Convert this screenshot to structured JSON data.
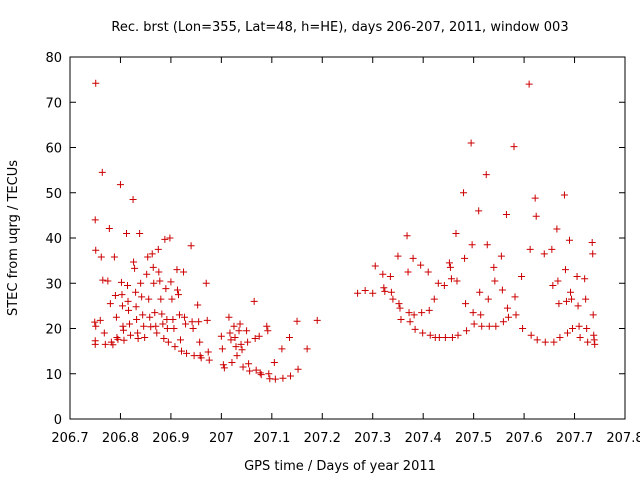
{
  "chart_data": {
    "type": "scatter",
    "title": "Rec. brst (Lon=355, Lat=48, h=HE), days 206-207, 2011, window 003",
    "xlabel": "GPS time / Days of year 2011",
    "ylabel": "STEC from uqrg / TECUs",
    "xlim": [
      206.7,
      207.8
    ],
    "ylim": [
      0,
      80
    ],
    "xticks": [
      206.7,
      206.8,
      206.9,
      207,
      207.1,
      207.2,
      207.3,
      207.4,
      207.5,
      207.6,
      207.7,
      207.8
    ],
    "xtick_labels": [
      "206.7",
      "206.8",
      "206.9",
      "207",
      "207.1",
      "207.2",
      "207.3",
      "207.4",
      "207.5",
      "207.6",
      "207.7",
      "207.8"
    ],
    "yticks": [
      0,
      10,
      20,
      30,
      40,
      50,
      60,
      70,
      80
    ],
    "ytick_labels": [
      "0",
      "10",
      "20",
      "30",
      "40",
      "50",
      "60",
      "70",
      "80"
    ],
    "marker": "+",
    "color": "#cc0000",
    "grid": false,
    "series": [
      {
        "points": [
          [
            206.751,
            74.2
          ],
          [
            206.75,
            44.0
          ],
          [
            206.751,
            37.3
          ],
          [
            206.749,
            21.4
          ],
          [
            206.751,
            20.5
          ],
          [
            206.75,
            17.3
          ],
          [
            206.75,
            16.5
          ],
          [
            206.76,
            21.8
          ],
          [
            206.762,
            35.8
          ],
          [
            206.764,
            54.5
          ],
          [
            206.765,
            30.7
          ],
          [
            206.768,
            19.0
          ],
          [
            206.77,
            16.5
          ],
          [
            206.775,
            30.5
          ],
          [
            206.778,
            42.1
          ],
          [
            206.78,
            25.5
          ],
          [
            206.782,
            17.0
          ],
          [
            206.785,
            16.4
          ],
          [
            206.788,
            35.8
          ],
          [
            206.79,
            27.3
          ],
          [
            206.792,
            22.5
          ],
          [
            206.793,
            18.0
          ],
          [
            206.795,
            17.6
          ],
          [
            206.8,
            51.8
          ],
          [
            206.802,
            30.2
          ],
          [
            206.803,
            27.5
          ],
          [
            206.804,
            25.0
          ],
          [
            206.805,
            20.5
          ],
          [
            206.806,
            19.6
          ],
          [
            206.807,
            17.4
          ],
          [
            206.812,
            41.0
          ],
          [
            206.814,
            29.5
          ],
          [
            206.815,
            26.0
          ],
          [
            206.816,
            24.0
          ],
          [
            206.818,
            21.0
          ],
          [
            206.82,
            18.5
          ],
          [
            206.825,
            48.5
          ],
          [
            206.826,
            34.7
          ],
          [
            206.828,
            33.3
          ],
          [
            206.83,
            28.0
          ],
          [
            206.831,
            24.8
          ],
          [
            206.832,
            22.0
          ],
          [
            206.834,
            19.0
          ],
          [
            206.835,
            17.8
          ],
          [
            206.838,
            41.0
          ],
          [
            206.84,
            30.0
          ],
          [
            206.842,
            27.0
          ],
          [
            206.844,
            23.0
          ],
          [
            206.846,
            20.5
          ],
          [
            206.848,
            18.0
          ],
          [
            206.852,
            32.0
          ],
          [
            206.854,
            35.8
          ],
          [
            206.856,
            26.5
          ],
          [
            206.858,
            22.5
          ],
          [
            206.86,
            20.4
          ],
          [
            206.863,
            36.5
          ],
          [
            206.865,
            33.5
          ],
          [
            206.866,
            30.0
          ],
          [
            206.868,
            23.5
          ],
          [
            206.87,
            20.5
          ],
          [
            206.872,
            19.0
          ],
          [
            206.875,
            37.5
          ],
          [
            206.876,
            32.5
          ],
          [
            206.878,
            30.5
          ],
          [
            206.88,
            26.5
          ],
          [
            206.882,
            23.2
          ],
          [
            206.884,
            21.0
          ],
          [
            206.886,
            17.8
          ],
          [
            206.888,
            39.7
          ],
          [
            206.89,
            28.8
          ],
          [
            206.892,
            22.0
          ],
          [
            206.893,
            20.0
          ],
          [
            206.895,
            17.0
          ],
          [
            206.898,
            40.0
          ],
          [
            206.9,
            30.3
          ],
          [
            206.902,
            26.5
          ],
          [
            206.904,
            22.0
          ],
          [
            206.906,
            20.0
          ],
          [
            206.908,
            16.0
          ],
          [
            206.912,
            33.0
          ],
          [
            206.913,
            28.5
          ],
          [
            206.915,
            27.5
          ],
          [
            206.917,
            23.0
          ],
          [
            206.919,
            17.5
          ],
          [
            206.921,
            15.0
          ],
          [
            206.925,
            32.5
          ],
          [
            206.927,
            22.5
          ],
          [
            206.929,
            21.0
          ],
          [
            206.931,
            14.5
          ],
          [
            206.94,
            38.3
          ],
          [
            206.942,
            21.5
          ],
          [
            206.944,
            20.0
          ],
          [
            206.946,
            14.0
          ],
          [
            206.953,
            25.2
          ],
          [
            206.955,
            21.5
          ],
          [
            206.957,
            17.0
          ],
          [
            206.958,
            14.0
          ],
          [
            206.96,
            13.5
          ],
          [
            206.97,
            30.0
          ],
          [
            206.972,
            21.8
          ],
          [
            206.974,
            14.8
          ],
          [
            206.976,
            13.0
          ],
          [
            207.0,
            18.3
          ],
          [
            207.002,
            15.5
          ],
          [
            207.004,
            12.0
          ],
          [
            207.006,
            11.3
          ],
          [
            207.015,
            22.5
          ],
          [
            207.017,
            19.0
          ],
          [
            207.019,
            17.5
          ],
          [
            207.021,
            12.5
          ],
          [
            207.025,
            20.5
          ],
          [
            207.027,
            18.0
          ],
          [
            207.029,
            16.0
          ],
          [
            207.031,
            14.0
          ],
          [
            207.035,
            19.5
          ],
          [
            207.037,
            21.0
          ],
          [
            207.039,
            16.5
          ],
          [
            207.041,
            15.3
          ],
          [
            207.043,
            11.5
          ],
          [
            207.05,
            19.5
          ],
          [
            207.052,
            17.0
          ],
          [
            207.054,
            12.2
          ],
          [
            207.056,
            10.6
          ],
          [
            207.065,
            26.0
          ],
          [
            207.067,
            17.8
          ],
          [
            207.069,
            10.8
          ],
          [
            207.075,
            18.3
          ],
          [
            207.077,
            10.2
          ],
          [
            207.079,
            9.8
          ],
          [
            207.09,
            20.5
          ],
          [
            207.092,
            19.5
          ],
          [
            207.094,
            10.0
          ],
          [
            207.096,
            8.9
          ],
          [
            207.105,
            12.5
          ],
          [
            207.107,
            8.8
          ],
          [
            207.12,
            15.5
          ],
          [
            207.122,
            9.0
          ],
          [
            207.135,
            18.0
          ],
          [
            207.137,
            9.5
          ],
          [
            207.15,
            21.6
          ],
          [
            207.152,
            11.0
          ],
          [
            207.17,
            15.5
          ],
          [
            207.19,
            21.8
          ],
          [
            207.27,
            27.8
          ],
          [
            207.285,
            28.4
          ],
          [
            207.3,
            27.8
          ],
          [
            207.305,
            33.8
          ],
          [
            207.32,
            32.0
          ],
          [
            207.322,
            29.0
          ],
          [
            207.324,
            28.2
          ],
          [
            207.335,
            31.5
          ],
          [
            207.337,
            28.0
          ],
          [
            207.34,
            26.5
          ],
          [
            207.35,
            36.0
          ],
          [
            207.352,
            25.5
          ],
          [
            207.354,
            24.5
          ],
          [
            207.356,
            22.0
          ],
          [
            207.368,
            40.5
          ],
          [
            207.37,
            32.5
          ],
          [
            207.372,
            23.5
          ],
          [
            207.374,
            21.5
          ],
          [
            207.38,
            35.5
          ],
          [
            207.382,
            23.0
          ],
          [
            207.384,
            19.8
          ],
          [
            207.395,
            34.0
          ],
          [
            207.397,
            23.5
          ],
          [
            207.399,
            19.0
          ],
          [
            207.41,
            32.5
          ],
          [
            207.412,
            24.0
          ],
          [
            207.414,
            18.5
          ],
          [
            207.422,
            26.5
          ],
          [
            207.424,
            18.0
          ],
          [
            207.43,
            30.0
          ],
          [
            207.432,
            18.0
          ],
          [
            207.442,
            29.5
          ],
          [
            207.444,
            18.0
          ],
          [
            207.452,
            34.5
          ],
          [
            207.454,
            33.5
          ],
          [
            207.456,
            31.0
          ],
          [
            207.458,
            18.0
          ],
          [
            207.465,
            41.0
          ],
          [
            207.467,
            30.5
          ],
          [
            207.469,
            18.5
          ],
          [
            207.48,
            50.0
          ],
          [
            207.482,
            35.5
          ],
          [
            207.484,
            25.5
          ],
          [
            207.486,
            19.5
          ],
          [
            207.495,
            61.0
          ],
          [
            207.497,
            38.5
          ],
          [
            207.499,
            23.5
          ],
          [
            207.501,
            21.0
          ],
          [
            207.51,
            46.0
          ],
          [
            207.512,
            28.0
          ],
          [
            207.514,
            23.0
          ],
          [
            207.516,
            20.5
          ],
          [
            207.525,
            54.0
          ],
          [
            207.527,
            38.5
          ],
          [
            207.529,
            26.5
          ],
          [
            207.531,
            20.5
          ],
          [
            207.54,
            33.5
          ],
          [
            207.542,
            30.5
          ],
          [
            207.544,
            20.5
          ],
          [
            207.555,
            36.0
          ],
          [
            207.557,
            28.5
          ],
          [
            207.559,
            21.5
          ],
          [
            207.565,
            45.2
          ],
          [
            207.567,
            24.5
          ],
          [
            207.569,
            22.5
          ],
          [
            207.58,
            60.2
          ],
          [
            207.582,
            27.0
          ],
          [
            207.584,
            23.0
          ],
          [
            207.595,
            31.5
          ],
          [
            207.597,
            20.0
          ],
          [
            207.61,
            74.0
          ],
          [
            207.612,
            37.5
          ],
          [
            207.614,
            18.5
          ],
          [
            207.622,
            48.8
          ],
          [
            207.624,
            44.8
          ],
          [
            207.626,
            17.5
          ],
          [
            207.64,
            36.5
          ],
          [
            207.642,
            17.0
          ],
          [
            207.655,
            37.5
          ],
          [
            207.657,
            29.5
          ],
          [
            207.659,
            17.0
          ],
          [
            207.665,
            42.0
          ],
          [
            207.667,
            30.5
          ],
          [
            207.669,
            25.5
          ],
          [
            207.671,
            18.0
          ],
          [
            207.68,
            49.5
          ],
          [
            207.682,
            33.0
          ],
          [
            207.684,
            26.0
          ],
          [
            207.686,
            19.0
          ],
          [
            207.69,
            39.5
          ],
          [
            207.692,
            28.0
          ],
          [
            207.694,
            26.5
          ],
          [
            207.696,
            20.0
          ],
          [
            207.705,
            31.5
          ],
          [
            207.707,
            25.0
          ],
          [
            207.709,
            20.5
          ],
          [
            207.711,
            18.0
          ],
          [
            207.72,
            31.0
          ],
          [
            207.722,
            26.5
          ],
          [
            207.724,
            20.0
          ],
          [
            207.726,
            17.0
          ],
          [
            207.735,
            39.0
          ],
          [
            207.736,
            36.5
          ],
          [
            207.737,
            23.0
          ],
          [
            207.738,
            18.5
          ],
          [
            207.739,
            17.5
          ],
          [
            207.74,
            16.5
          ]
        ]
      }
    ]
  }
}
